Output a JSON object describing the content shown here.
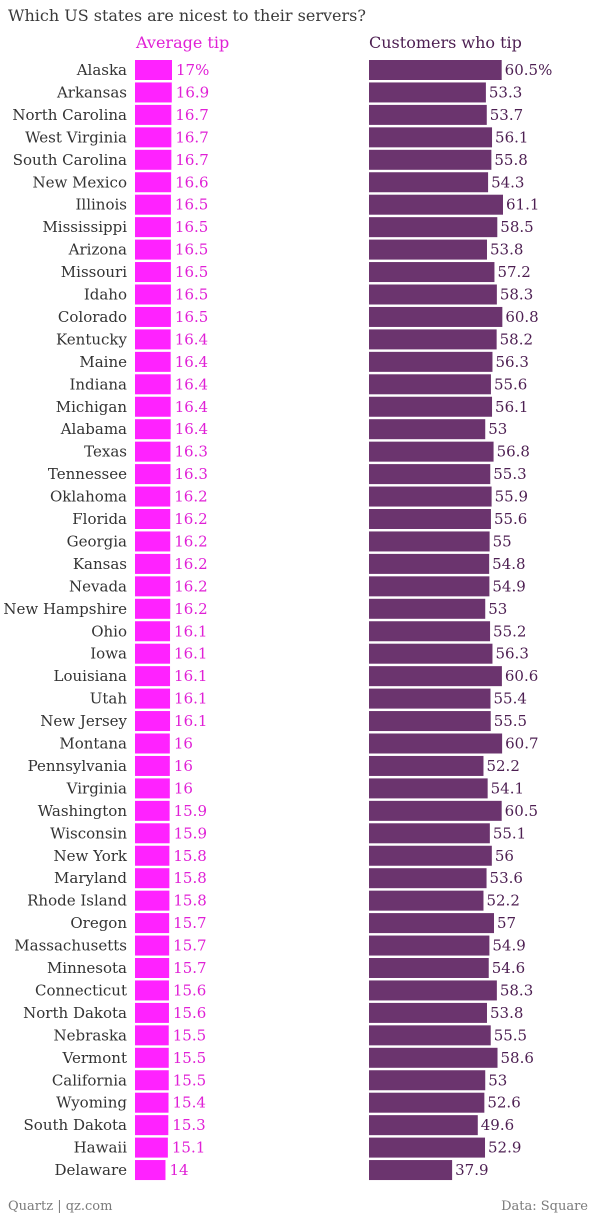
{
  "title": "Which US states are nicest to their servers?",
  "credit": "Quartz | qz.com",
  "source": "Data: Square",
  "colors": {
    "avg_tip": "#ff22ff",
    "customers_tip": "#6b346e",
    "avg_tip_label": "#e020d6",
    "customers_tip_label": "#4d1f52",
    "category_label": "#333333"
  },
  "chart_data": {
    "type": "bar",
    "orientation": "horizontal",
    "categories": [
      "Alaska",
      "Arkansas",
      "North Carolina",
      "West Virginia",
      "South Carolina",
      "New Mexico",
      "Illinois",
      "Mississippi",
      "Arizona",
      "Missouri",
      "Idaho",
      "Colorado",
      "Kentucky",
      "Maine",
      "Indiana",
      "Michigan",
      "Alabama",
      "Texas",
      "Tennessee",
      "Oklahoma",
      "Florida",
      "Georgia",
      "Kansas",
      "Nevada",
      "New Hampshire",
      "Ohio",
      "Iowa",
      "Louisiana",
      "Utah",
      "New Jersey",
      "Montana",
      "Pennsylvania",
      "Virginia",
      "Washington",
      "Wisconsin",
      "New York",
      "Maryland",
      "Rhode Island",
      "Oregon",
      "Massachusetts",
      "Minnesota",
      "Connecticut",
      "North Dakota",
      "Nebraska",
      "Vermont",
      "California",
      "Wyoming",
      "South Dakota",
      "Hawaii",
      "Delaware"
    ],
    "series": [
      {
        "name": "Average tip",
        "values": [
          17,
          16.9,
          16.7,
          16.7,
          16.7,
          16.6,
          16.5,
          16.5,
          16.5,
          16.5,
          16.5,
          16.5,
          16.4,
          16.4,
          16.4,
          16.4,
          16.4,
          16.3,
          16.3,
          16.2,
          16.2,
          16.2,
          16.2,
          16.2,
          16.2,
          16.1,
          16.1,
          16.1,
          16.1,
          16.1,
          16,
          16,
          16,
          15.9,
          15.9,
          15.8,
          15.8,
          15.8,
          15.7,
          15.7,
          15.7,
          15.6,
          15.6,
          15.5,
          15.5,
          15.5,
          15.4,
          15.3,
          15.1,
          14
        ],
        "labels": [
          "17%",
          "16.9",
          "16.7",
          "16.7",
          "16.7",
          "16.6",
          "16.5",
          "16.5",
          "16.5",
          "16.5",
          "16.5",
          "16.5",
          "16.4",
          "16.4",
          "16.4",
          "16.4",
          "16.4",
          "16.3",
          "16.3",
          "16.2",
          "16.2",
          "16.2",
          "16.2",
          "16.2",
          "16.2",
          "16.1",
          "16.1",
          "16.1",
          "16.1",
          "16.1",
          "16",
          "16",
          "16",
          "15.9",
          "15.9",
          "15.8",
          "15.8",
          "15.8",
          "15.7",
          "15.7",
          "15.7",
          "15.6",
          "15.6",
          "15.5",
          "15.5",
          "15.5",
          "15.4",
          "15.3",
          "15.1",
          "14"
        ],
        "axis_max": 17
      },
      {
        "name": "Customers who tip",
        "values": [
          60.5,
          53.3,
          53.7,
          56.1,
          55.8,
          54.3,
          61.1,
          58.5,
          53.8,
          57.2,
          58.3,
          60.8,
          58.2,
          56.3,
          55.6,
          56.1,
          53,
          56.8,
          55.3,
          55.9,
          55.6,
          55,
          54.8,
          54.9,
          53,
          55.2,
          56.3,
          60.6,
          55.4,
          55.5,
          60.7,
          52.2,
          54.1,
          60.5,
          55.1,
          56,
          53.6,
          52.2,
          57,
          54.9,
          54.6,
          58.3,
          53.8,
          55.5,
          58.6,
          53,
          52.6,
          49.6,
          52.9,
          37.9
        ],
        "labels": [
          "60.5%",
          "53.3",
          "53.7",
          "56.1",
          "55.8",
          "54.3",
          "61.1",
          "58.5",
          "53.8",
          "57.2",
          "58.3",
          "60.8",
          "58.2",
          "56.3",
          "55.6",
          "56.1",
          "53",
          "56.8",
          "55.3",
          "55.9",
          "55.6",
          "55",
          "54.8",
          "54.9",
          "53",
          "55.2",
          "56.3",
          "60.6",
          "55.4",
          "55.5",
          "60.7",
          "52.2",
          "54.1",
          "60.5",
          "55.1",
          "56",
          "53.6",
          "52.2",
          "57",
          "54.9",
          "54.6",
          "58.3",
          "53.8",
          "55.5",
          "58.6",
          "53",
          "52.6",
          "49.6",
          "52.9",
          "37.9"
        ],
        "axis_max": 61.1
      }
    ],
    "legend": "column headers above each bar group",
    "grid": false
  }
}
